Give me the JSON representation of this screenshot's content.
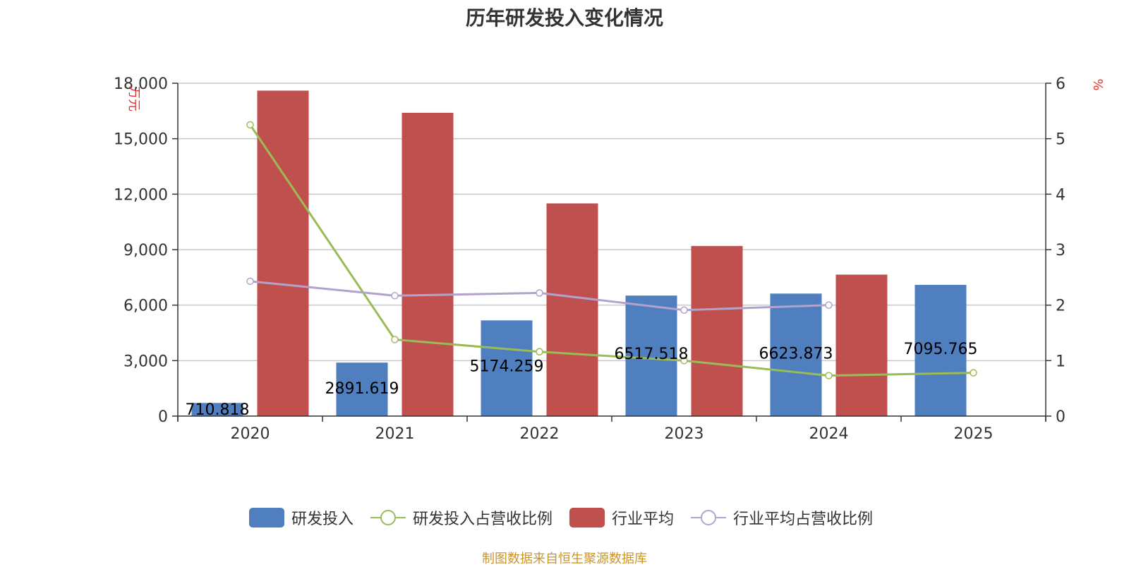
{
  "chart_data": {
    "type": "bar",
    "title": "历年研发投入变化情况",
    "categories": [
      "2020",
      "2021",
      "2022",
      "2023",
      "2024",
      "2025"
    ],
    "y_left": {
      "unit": "万元",
      "ticks": [
        "0",
        "3,000",
        "6,000",
        "9,000",
        "12,000",
        "15,000",
        "18,000"
      ],
      "range": [
        0,
        18000
      ]
    },
    "y_right": {
      "unit": "%",
      "ticks": [
        "0",
        "1",
        "2",
        "3",
        "4",
        "5",
        "6"
      ],
      "range": [
        0,
        6
      ]
    },
    "grid": true,
    "legend_position": "bottom",
    "series": [
      {
        "name": "研发投入",
        "type": "bar",
        "axis": "left",
        "color": "#4f7fbe",
        "values": [
          710.818,
          2891.619,
          5174.259,
          6517.518,
          6623.873,
          7095.765
        ],
        "labels": [
          "710.818",
          "2891.619",
          "5174.259",
          "6517.518",
          "6623.873",
          "7095.765"
        ]
      },
      {
        "name": "研发投入占营收比例",
        "type": "line",
        "axis": "right",
        "color": "#9bbb59",
        "values": [
          5.25,
          1.38,
          1.16,
          1.0,
          0.73,
          0.78
        ]
      },
      {
        "name": "行业平均",
        "type": "bar",
        "axis": "left",
        "color": "#c0504d",
        "values": [
          17600,
          16400,
          11500,
          9200,
          7650,
          null
        ]
      },
      {
        "name": "行业平均占营收比例",
        "type": "line",
        "axis": "right",
        "color": "#b3a2cc",
        "values": [
          2.43,
          2.17,
          2.22,
          1.91,
          2.0,
          null
        ]
      }
    ],
    "source": "制图数据来自恒生聚源数据库"
  }
}
